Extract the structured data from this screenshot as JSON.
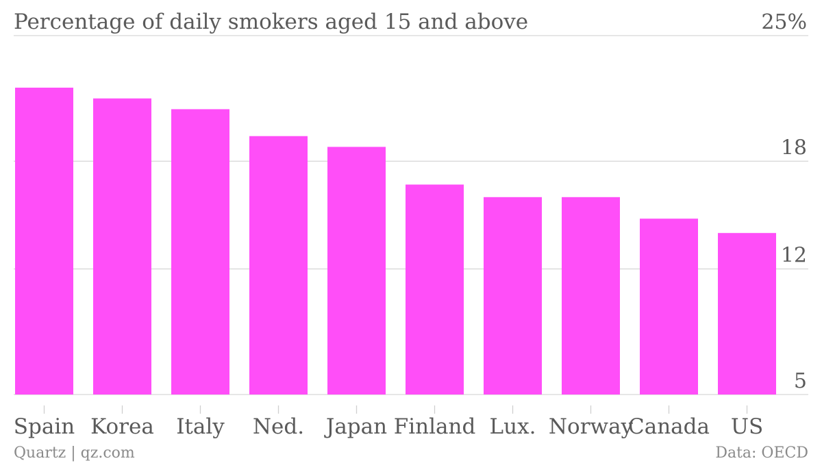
{
  "chart_data": {
    "type": "bar",
    "title": "Percentage of daily smokers aged 15 and above",
    "categories": [
      "Spain",
      "Korea",
      "Italy",
      "Ned.",
      "Japan",
      "Finland",
      "Lux.",
      "Norway",
      "Canada",
      "US"
    ],
    "values": [
      22.1,
      21.5,
      20.9,
      19.4,
      18.8,
      16.7,
      16.0,
      16.0,
      14.8,
      14.0
    ],
    "ylim": [
      5,
      25
    ],
    "yticks": [
      {
        "value": 5,
        "label": "5"
      },
      {
        "value": 12,
        "label": "12"
      },
      {
        "value": 18,
        "label": "18"
      },
      {
        "value": 25,
        "label": "25%"
      }
    ],
    "bar_color": "#ff4ef8",
    "grid": true
  },
  "footer": {
    "source_left": "Quartz | qz.com",
    "source_right": "Data: OECD"
  }
}
